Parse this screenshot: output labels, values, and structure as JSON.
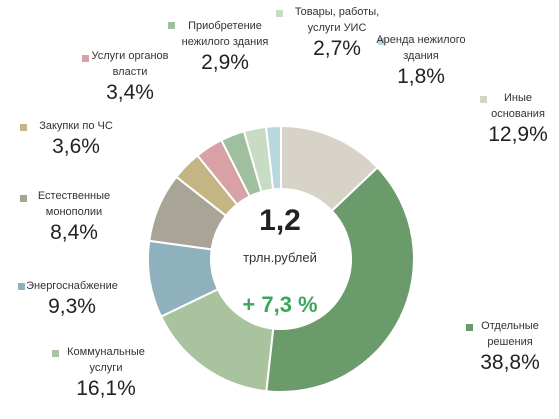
{
  "chart_data": {
    "type": "donut",
    "categories": [
      "Иные основания",
      "Отдельные решения",
      "Коммунальные услуги",
      "Энергоснабжение",
      "Естественные монополии",
      "Закупки по ЧС",
      "Услуги органов власти",
      "Приобретение нежилого здания",
      "Товары, работы, услуги УИС",
      "Аренда нежилого здания"
    ],
    "values": [
      12.9,
      38.8,
      16.1,
      9.3,
      8.4,
      3.6,
      3.4,
      2.9,
      2.7,
      1.8
    ],
    "value_labels": [
      "12,9%",
      "38,8%",
      "16,1%",
      "9,3%",
      "8,4%",
      "3,6%",
      "3,4%",
      "2,9%",
      "2,7%",
      "1,8%"
    ],
    "colors": [
      "#d8d3c9",
      "#6b9b6b",
      "#a9c39e",
      "#8fb1bd",
      "#a9a596",
      "#c3b684",
      "#d8a1a5",
      "#9fbf9f",
      "#c8dbc5",
      "#b9d7df"
    ],
    "center": {
      "total": "1,2",
      "unit": "трлн.рублей",
      "change": "+ 7,3 %"
    }
  }
}
